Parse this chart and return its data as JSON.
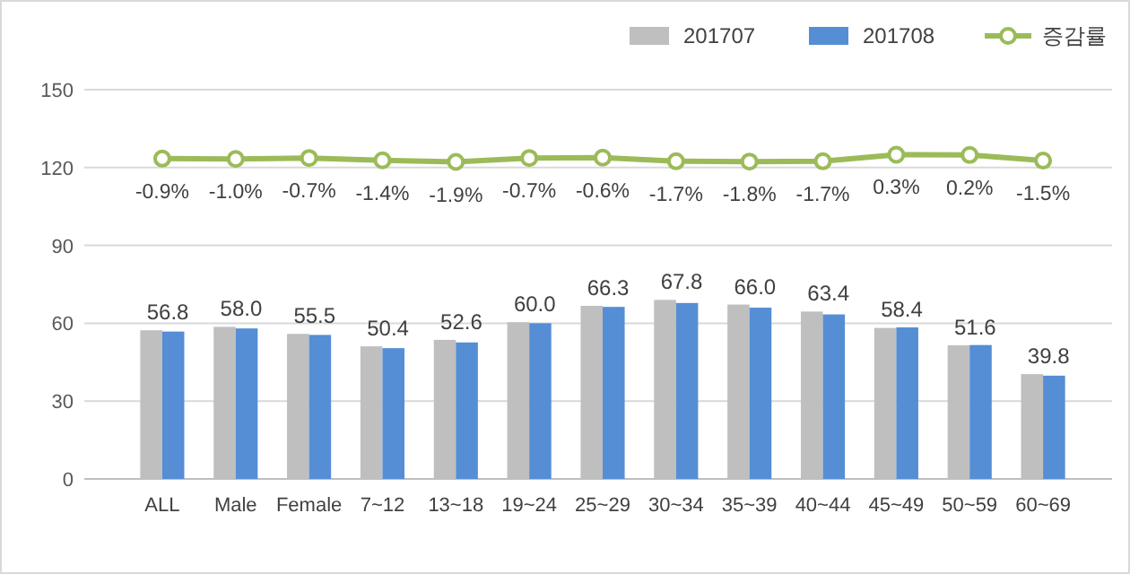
{
  "chart_data": {
    "type": "bar",
    "categories": [
      "ALL",
      "Male",
      "Female",
      "7~12",
      "13~18",
      "19~24",
      "25~29",
      "30~34",
      "35~39",
      "40~44",
      "45~49",
      "50~59",
      "60~69"
    ],
    "series": [
      {
        "name": "201707",
        "color": "#bfbfbf",
        "values": [
          57.3,
          58.6,
          55.9,
          51.1,
          53.6,
          60.4,
          66.7,
          69.0,
          67.2,
          64.5,
          58.2,
          51.5,
          40.4
        ]
      },
      {
        "name": "201708",
        "color": "#558ed5",
        "values": [
          56.8,
          58.0,
          55.5,
          50.4,
          52.6,
          60.0,
          66.3,
          67.8,
          66.0,
          63.4,
          58.4,
          51.6,
          39.8
        ],
        "value_labels": [
          "56.8",
          "58.0",
          "55.5",
          "50.4",
          "52.6",
          "60.0",
          "66.3",
          "67.8",
          "66.0",
          "63.4",
          "58.4",
          "51.6",
          "39.8"
        ]
      },
      {
        "name": "증감률",
        "type": "line",
        "axis": "y2",
        "color": "#9bbb59",
        "marker": "circle",
        "values": [
          -0.9,
          -1.0,
          -0.7,
          -1.4,
          -1.9,
          -0.7,
          -0.6,
          -1.7,
          -1.8,
          -1.7,
          0.3,
          0.2,
          -1.5
        ],
        "value_labels": [
          "-0.9%",
          "-1.0%",
          "-0.7%",
          "-1.4%",
          "-1.9%",
          "-0.7%",
          "-0.6%",
          "-1.7%",
          "-1.8%",
          "-1.7%",
          "0.3%",
          "0.2%",
          "-1.5%"
        ]
      }
    ],
    "ylim": [
      0,
      150
    ],
    "yticks": [
      0,
      30,
      60,
      90,
      120,
      150
    ],
    "y2lim": [
      -98,
      20
    ],
    "grid": "y",
    "legend": "top right"
  }
}
